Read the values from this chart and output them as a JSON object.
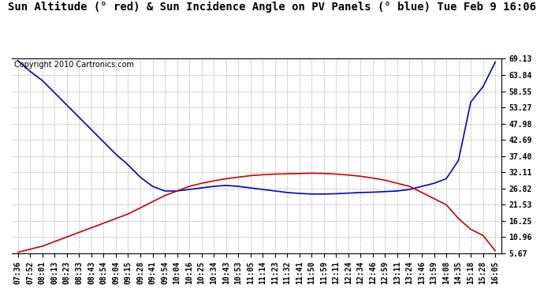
{
  "title": "Sun Altitude (° red) & Sun Incidence Angle on PV Panels (° blue) Tue Feb 9 16:06",
  "copyright_text": "Copyright 2010 Cartronics.com",
  "ylabel_right_ticks": [
    5.67,
    10.96,
    16.25,
    21.53,
    26.82,
    32.11,
    37.4,
    42.69,
    47.98,
    53.27,
    58.55,
    63.84,
    69.13
  ],
  "ylim": [
    5.67,
    69.13
  ],
  "x_labels": [
    "07:36",
    "07:52",
    "08:01",
    "08:13",
    "08:23",
    "08:33",
    "08:43",
    "08:54",
    "09:04",
    "09:15",
    "09:28",
    "09:41",
    "09:54",
    "10:04",
    "10:16",
    "10:25",
    "10:34",
    "10:43",
    "10:53",
    "11:05",
    "11:14",
    "11:23",
    "11:32",
    "11:41",
    "11:50",
    "11:59",
    "12:11",
    "12:24",
    "12:34",
    "12:46",
    "12:59",
    "13:11",
    "13:24",
    "13:46",
    "13:59",
    "14:08",
    "14:35",
    "15:18",
    "15:28",
    "16:05"
  ],
  "red_curve_color": "#cc0000",
  "blue_curve_color": "#0000cc",
  "grid_color": "#b0b0b0",
  "background_color": "#ffffff",
  "title_fontsize": 10,
  "copyright_fontsize": 7,
  "tick_label_fontsize": 7,
  "red_y": [
    6.0,
    7.0,
    8.0,
    9.5,
    11.0,
    12.5,
    14.0,
    15.5,
    17.0,
    18.5,
    20.5,
    22.5,
    24.5,
    26.0,
    27.5,
    28.5,
    29.3,
    30.0,
    30.5,
    31.0,
    31.3,
    31.5,
    31.6,
    31.7,
    31.8,
    31.7,
    31.5,
    31.2,
    30.8,
    30.2,
    29.5,
    28.5,
    27.5,
    25.5,
    23.5,
    21.5,
    17.0,
    13.5,
    11.5,
    6.5
  ],
  "blue_y": [
    68.5,
    65.0,
    62.0,
    58.0,
    54.0,
    50.0,
    46.0,
    42.0,
    38.0,
    34.5,
    30.5,
    27.5,
    26.0,
    26.0,
    26.5,
    27.0,
    27.5,
    27.8,
    27.5,
    27.0,
    26.5,
    26.0,
    25.5,
    25.2,
    25.0,
    25.0,
    25.1,
    25.3,
    25.5,
    25.6,
    25.8,
    26.0,
    26.5,
    27.5,
    28.5,
    30.0,
    36.0,
    55.0,
    60.0,
    68.0
  ]
}
